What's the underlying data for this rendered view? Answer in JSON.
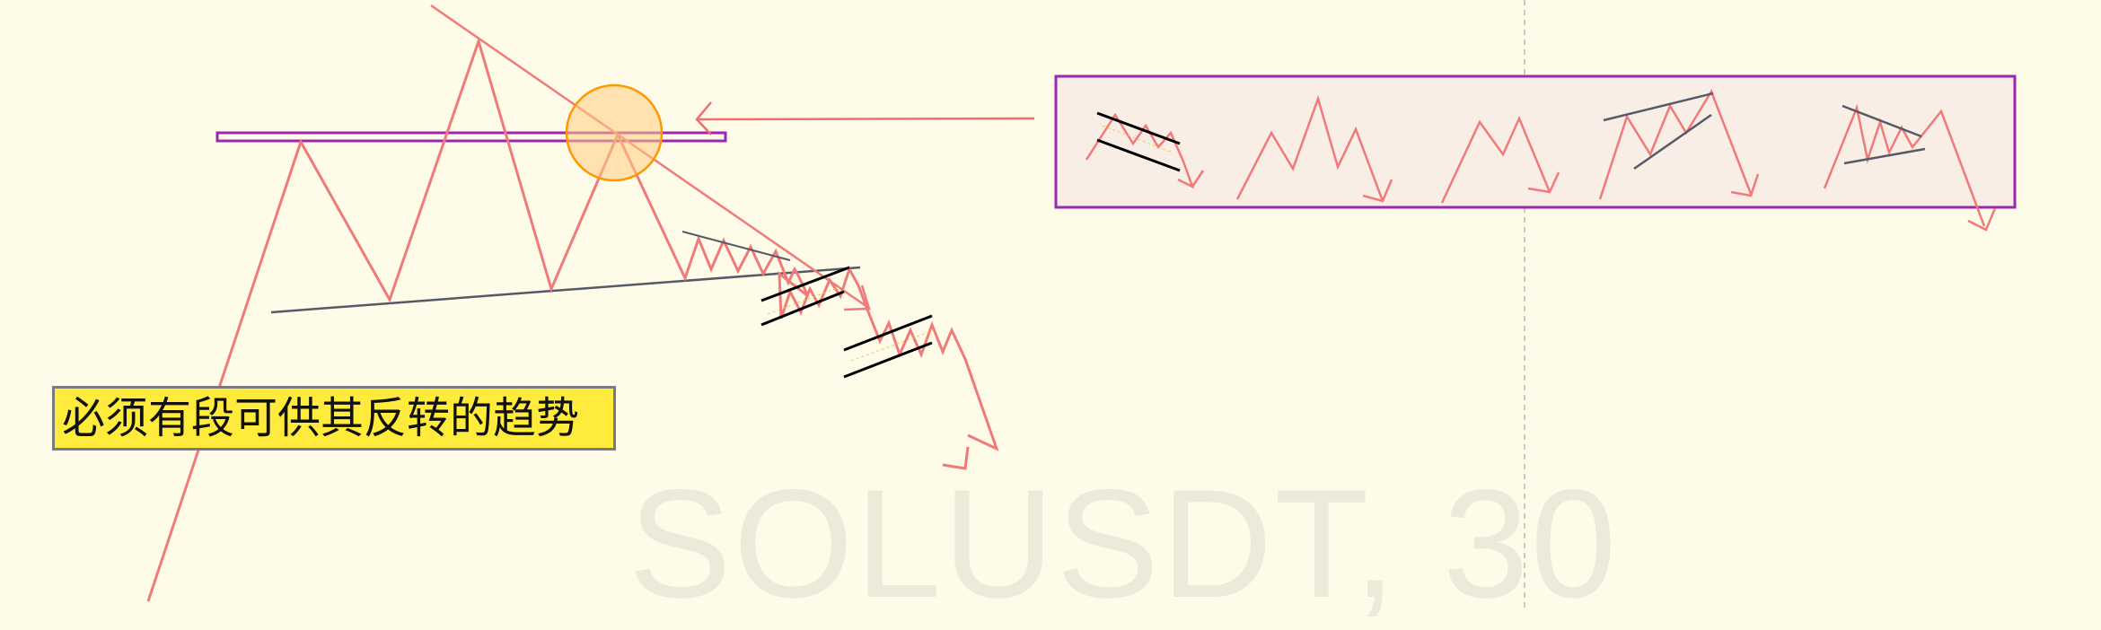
{
  "watermark": {
    "text": "SOLUSDT, 30"
  },
  "note": {
    "text": "必须有段可供其反转的趋势"
  },
  "colors": {
    "background": "#fefce8",
    "price_path": "#f07a7a",
    "trendline": "#555a66",
    "flag_lines": "#000000",
    "neckline_box": "#9b27b0",
    "highlight_circle": "#ff9800",
    "arrow": "#f26d6d",
    "label_bg": "#ffeb3b"
  }
}
